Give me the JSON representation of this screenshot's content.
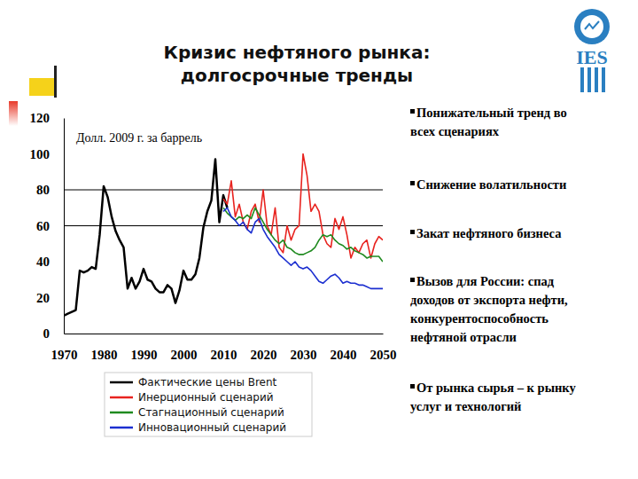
{
  "chart_data": {
    "type": "line",
    "title": "Кризис нефтяного рынка: долгосрочные тренды",
    "annotations": [
      "Долл. 2009 г. за баррель"
    ],
    "x": [
      1970,
      1971,
      1972,
      1973,
      1974,
      1975,
      1976,
      1977,
      1978,
      1979,
      1980,
      1981,
      1982,
      1983,
      1984,
      1985,
      1986,
      1987,
      1988,
      1989,
      1990,
      1991,
      1992,
      1993,
      1994,
      1995,
      1996,
      1997,
      1998,
      1999,
      2000,
      2001,
      2002,
      2003,
      2004,
      2005,
      2006,
      2007,
      2008,
      2009,
      2010,
      2011,
      2012,
      2013,
      2014,
      2015,
      2016,
      2017,
      2018,
      2019,
      2020,
      2021,
      2022,
      2023,
      2024,
      2025,
      2026,
      2027,
      2028,
      2029,
      2030,
      2031,
      2032,
      2033,
      2034,
      2035,
      2036,
      2037,
      2038,
      2039,
      2040,
      2041,
      2042,
      2043,
      2044,
      2045,
      2046,
      2047,
      2048,
      2049,
      2050
    ],
    "series": [
      {
        "name": "Фактические цены Brent",
        "color": "#000000",
        "values": [
          10,
          11,
          12,
          13,
          35,
          34,
          35,
          37,
          36,
          55,
          82,
          76,
          65,
          57,
          52,
          48,
          25,
          31,
          25,
          29,
          36,
          30,
          29,
          25,
          23,
          23,
          27,
          25,
          17,
          24,
          35,
          30,
          30,
          33,
          42,
          59,
          68,
          74,
          97,
          62,
          77,
          70,
          null,
          null,
          null,
          null,
          null,
          null,
          null,
          null,
          null,
          null,
          null,
          null,
          null,
          null,
          null,
          null,
          null,
          null,
          null,
          null,
          null,
          null,
          null,
          null,
          null,
          null,
          null,
          null,
          null,
          null,
          null,
          null,
          null,
          null,
          null,
          null,
          null,
          null,
          null
        ]
      },
      {
        "name": "Инерционный сценарий",
        "color": "#e8231f",
        "values": [
          null,
          null,
          null,
          null,
          null,
          null,
          null,
          null,
          null,
          null,
          null,
          null,
          null,
          null,
          null,
          null,
          null,
          null,
          null,
          null,
          null,
          null,
          null,
          null,
          null,
          null,
          null,
          null,
          null,
          null,
          null,
          null,
          null,
          null,
          null,
          null,
          null,
          null,
          null,
          null,
          75,
          72,
          85,
          65,
          72,
          62,
          58,
          68,
          72,
          62,
          80,
          60,
          55,
          70,
          48,
          45,
          60,
          52,
          58,
          60,
          100,
          88,
          68,
          72,
          68,
          55,
          50,
          48,
          64,
          58,
          65,
          55,
          42,
          48,
          45,
          50,
          52,
          42,
          50,
          54,
          52
        ]
      },
      {
        "name": "Стагнационный сценарий",
        "color": "#1f8a1f",
        "values": [
          null,
          null,
          null,
          null,
          null,
          null,
          null,
          null,
          null,
          null,
          null,
          null,
          null,
          null,
          null,
          null,
          null,
          null,
          null,
          null,
          null,
          null,
          null,
          null,
          null,
          null,
          null,
          null,
          null,
          null,
          null,
          null,
          null,
          null,
          null,
          null,
          null,
          null,
          null,
          null,
          70,
          67,
          65,
          63,
          65,
          64,
          66,
          64,
          70,
          66,
          62,
          58,
          55,
          52,
          50,
          52,
          48,
          47,
          45,
          44,
          44,
          45,
          46,
          48,
          52,
          55,
          54,
          55,
          52,
          50,
          49,
          47,
          48,
          46,
          45,
          44,
          42,
          43,
          43,
          43,
          40
        ]
      },
      {
        "name": "Инновационный сценарий",
        "color": "#1c2fd0",
        "values": [
          null,
          null,
          null,
          null,
          null,
          null,
          null,
          null,
          null,
          null,
          null,
          null,
          null,
          null,
          null,
          null,
          null,
          null,
          null,
          null,
          null,
          null,
          null,
          null,
          null,
          null,
          null,
          null,
          null,
          null,
          null,
          null,
          null,
          null,
          null,
          null,
          null,
          null,
          null,
          null,
          68,
          70,
          65,
          63,
          60,
          62,
          58,
          56,
          62,
          64,
          58,
          54,
          51,
          48,
          44,
          42,
          40,
          38,
          40,
          37,
          36,
          37,
          35,
          32,
          29,
          28,
          30,
          32,
          33,
          31,
          28,
          29,
          28,
          28,
          27,
          27,
          26,
          25,
          25,
          25,
          25
        ]
      }
    ],
    "xlim": [
      1970,
      2050
    ],
    "xticks": [
      1970,
      1980,
      1990,
      2000,
      2010,
      2020,
      2030,
      2040,
      2050
    ],
    "ylim": [
      0,
      120
    ],
    "yticks": [
      0,
      20,
      40,
      60,
      80,
      100,
      120
    ],
    "reference_lines": [
      60,
      80
    ],
    "grid": false
  },
  "slide": {
    "logo_text": "IES",
    "bullets": [
      [
        "Понижательный тренд во",
        "всех сценариях"
      ],
      [
        "Снижение волатильности"
      ],
      [
        "Закат нефтяного бизнеса"
      ],
      [
        "Вызов для России: спад",
        "доходов от экспорта нефти,",
        "конкурентоспособность",
        "нефтяной отрасли"
      ],
      [
        "От рынка сырья – к рынку",
        "услуг и технологий"
      ]
    ]
  }
}
